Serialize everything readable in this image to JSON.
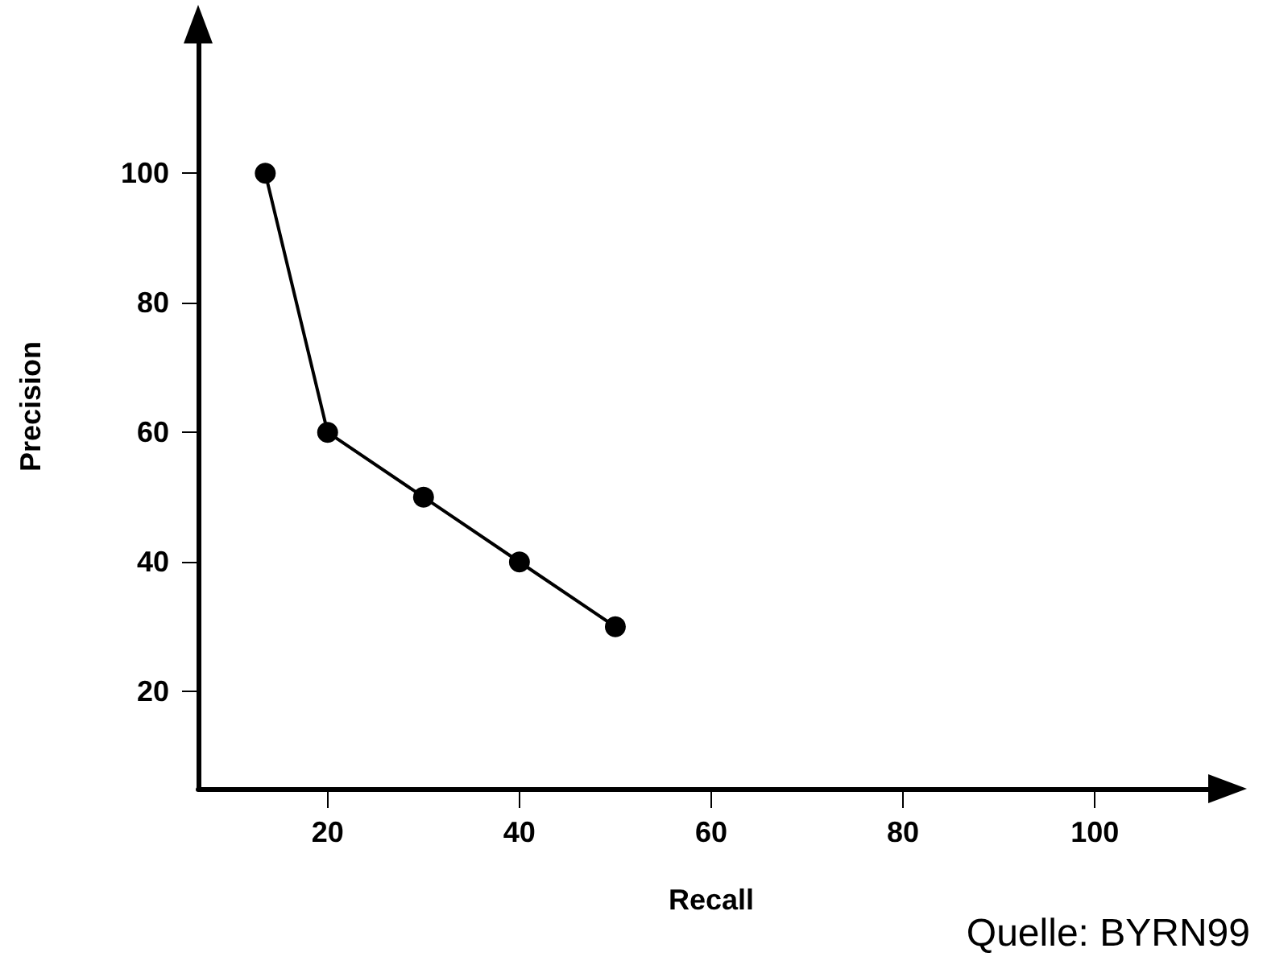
{
  "chart_data": {
    "type": "line",
    "xlabel": "Recall",
    "ylabel": "Precision",
    "annotations": [
      "Quelle: BYRN99"
    ],
    "x": [
      13.5,
      20,
      30,
      40,
      50
    ],
    "values": [
      100,
      60,
      50,
      40,
      30
    ],
    "color": "#000000",
    "marker": "circle",
    "line_style": "solid",
    "xlim": [
      6.5,
      113.5
    ],
    "ylim": [
      5,
      123
    ],
    "xticks": [
      20,
      40,
      60,
      80,
      100
    ],
    "yticks": [
      20,
      40,
      60,
      80,
      100
    ],
    "grid": false
  }
}
